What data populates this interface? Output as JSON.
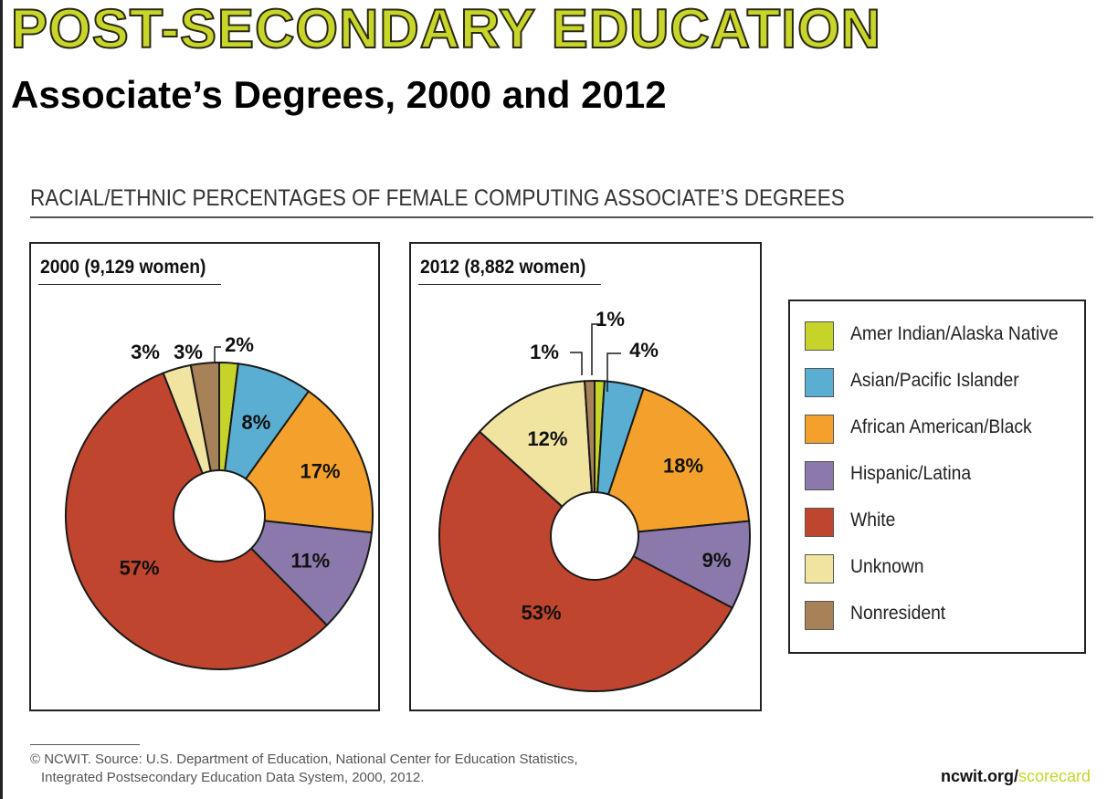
{
  "banner": "POST-SECONDARY EDUCATION",
  "subtitle": "Associate’s Degrees, 2000 and 2012",
  "section_heading": "RACIAL/ETHNIC PERCENTAGES OF FEMALE COMPUTING ASSOCIATE’S DEGREES",
  "colors": {
    "amer_indian": "#c6d42a",
    "asian": "#5aaed2",
    "african_american": "#f3a12c",
    "hispanic": "#8a79aa",
    "white": "#c0452e",
    "unknown": "#f1e3a0",
    "nonresident": "#a78258"
  },
  "legend": [
    {
      "label": "Amer Indian/Alaska Native",
      "color": "#c6d42a"
    },
    {
      "label": "Asian/Pacific Islander",
      "color": "#5aaed2"
    },
    {
      "label": "African American/Black",
      "color": "#f3a12c"
    },
    {
      "label": "Hispanic/Latina",
      "color": "#8a79aa"
    },
    {
      "label": "White",
      "color": "#c0452e"
    },
    {
      "label": "Unknown",
      "color": "#f1e3a0"
    },
    {
      "label": "Nonresident",
      "color": "#a78258"
    }
  ],
  "chart_data": [
    {
      "type": "pie",
      "title": "2000 (9,129 women)",
      "categories": [
        "Amer Indian/Alaska Native",
        "Asian/Pacific Islander",
        "African American/Black",
        "Hispanic/Latina",
        "White",
        "Unknown",
        "Nonresident"
      ],
      "values": [
        2,
        8,
        17,
        11,
        57,
        3,
        3
      ],
      "labels": [
        "2%",
        "8%",
        "17%",
        "11%",
        "57%",
        "3%",
        "3%"
      ]
    },
    {
      "type": "pie",
      "title": "2012 (8,882 women)",
      "categories": [
        "Amer Indian/Alaska Native",
        "Asian/Pacific Islander",
        "African American/Black",
        "Hispanic/Latina",
        "White",
        "Unknown",
        "Nonresident"
      ],
      "values": [
        1,
        4,
        18,
        9,
        53,
        12,
        1
      ],
      "labels": [
        "1%",
        "4%",
        "18%",
        "9%",
        "53%",
        "12%",
        "1%"
      ]
    }
  ],
  "source_lines": [
    "© NCWIT. Source: U.S. Department of Education, National Center for Education Statistics,",
    "Integrated Postsecondary Education Data System, 2000, 2012."
  ],
  "site": {
    "main": "ncwit.org/",
    "accent": "scorecard"
  }
}
